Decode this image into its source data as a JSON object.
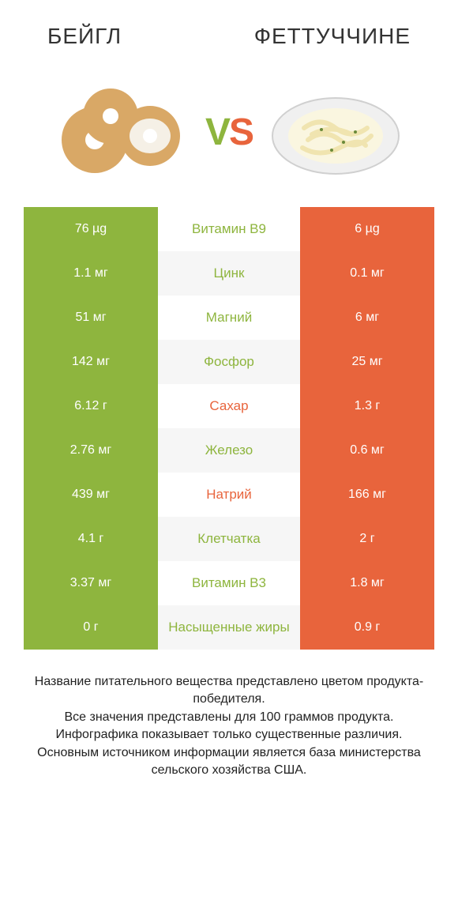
{
  "header": {
    "left_title": "БЕЙГЛ",
    "right_title": "ФЕТТУЧЧИНЕ"
  },
  "vs": {
    "v": "V",
    "s": "S"
  },
  "colors": {
    "left": "#8eb53e",
    "right": "#e8643c",
    "row_alt": "#f6f6f6",
    "text": "#333333"
  },
  "rows": [
    {
      "left": "76 µg",
      "label": "Витамин B9",
      "right": "6 µg",
      "winner": "left"
    },
    {
      "left": "1.1 мг",
      "label": "Цинк",
      "right": "0.1 мг",
      "winner": "left"
    },
    {
      "left": "51 мг",
      "label": "Магний",
      "right": "6 мг",
      "winner": "left"
    },
    {
      "left": "142 мг",
      "label": "Фосфор",
      "right": "25 мг",
      "winner": "left"
    },
    {
      "left": "6.12 г",
      "label": "Сахар",
      "right": "1.3 г",
      "winner": "right"
    },
    {
      "left": "2.76 мг",
      "label": "Железо",
      "right": "0.6 мг",
      "winner": "left"
    },
    {
      "left": "439 мг",
      "label": "Натрий",
      "right": "166 мг",
      "winner": "right"
    },
    {
      "left": "4.1 г",
      "label": "Клетчатка",
      "right": "2 г",
      "winner": "left"
    },
    {
      "left": "3.37 мг",
      "label": "Витамин B3",
      "right": "1.8 мг",
      "winner": "left"
    },
    {
      "left": "0 г",
      "label": "Насыщенные жиры",
      "right": "0.9 г",
      "winner": "left"
    }
  ],
  "footer": {
    "line1": "Название питательного вещества представлено цветом продукта-победителя.",
    "line2": "Все значения представлены для 100 граммов продукта.",
    "line3": "Инфографика показывает только существенные различия.",
    "line4": "Основным источником информации является база министерства сельского хозяйства США."
  }
}
